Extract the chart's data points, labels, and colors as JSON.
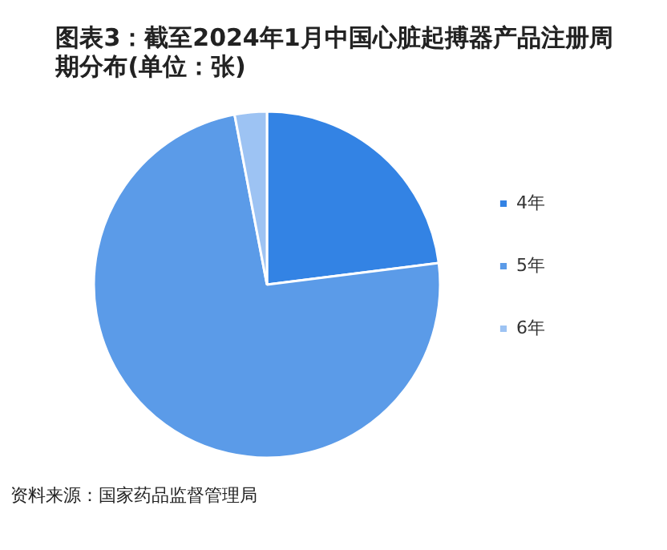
{
  "chart_data": {
    "type": "pie",
    "title": "图表3：截至2024年1月中国心脏起搏器产品注册周期分布(单位：张)",
    "categories": [
      "4年",
      "5年",
      "6年"
    ],
    "values": [
      23,
      74,
      3
    ],
    "colors": [
      "#3383e4",
      "#5b9be8",
      "#9dc3f3"
    ],
    "legend": "right",
    "annotations": [
      "资料来源：国家药品监督管理局"
    ]
  }
}
